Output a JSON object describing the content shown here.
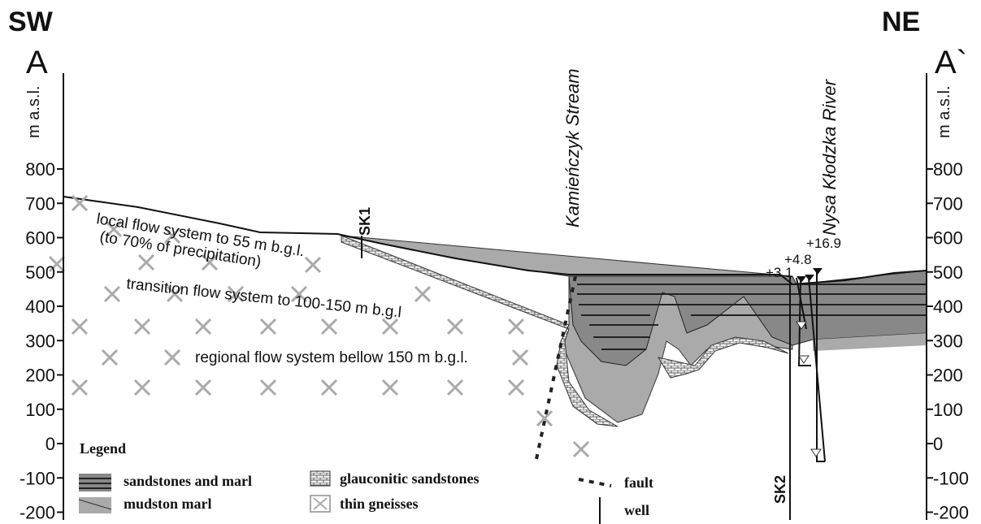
{
  "header": {
    "left": "SW",
    "right": "NE",
    "left_point": "A",
    "right_point": "A`"
  },
  "axes": {
    "left_label": "m a.s.l.",
    "right_label": "m a.s.l.",
    "ticks": [
      800,
      700,
      600,
      500,
      400,
      300,
      200,
      100,
      0,
      -100,
      -200
    ]
  },
  "features": {
    "stream": "Kamieńczyk Stream",
    "river": "Nysa Kłodzka River",
    "well1": "SK1",
    "well2": "SK2",
    "heads": [
      "+16.9",
      "+4.8",
      "+3.1"
    ]
  },
  "flow_systems": {
    "local": "local flow system to 55 m  b.g.l.",
    "local_note": "(to 70% of precipitation)",
    "transition": "transition flow system to 100-150 m b.g.l",
    "regional": "regional flow system bellow 150 m b.g.l."
  },
  "legend": {
    "title": "Legend",
    "items": [
      "sandstones and marl",
      "mudston marl",
      "glauconitic sandstones",
      "thin gneisses",
      "fault",
      "well"
    ]
  }
}
